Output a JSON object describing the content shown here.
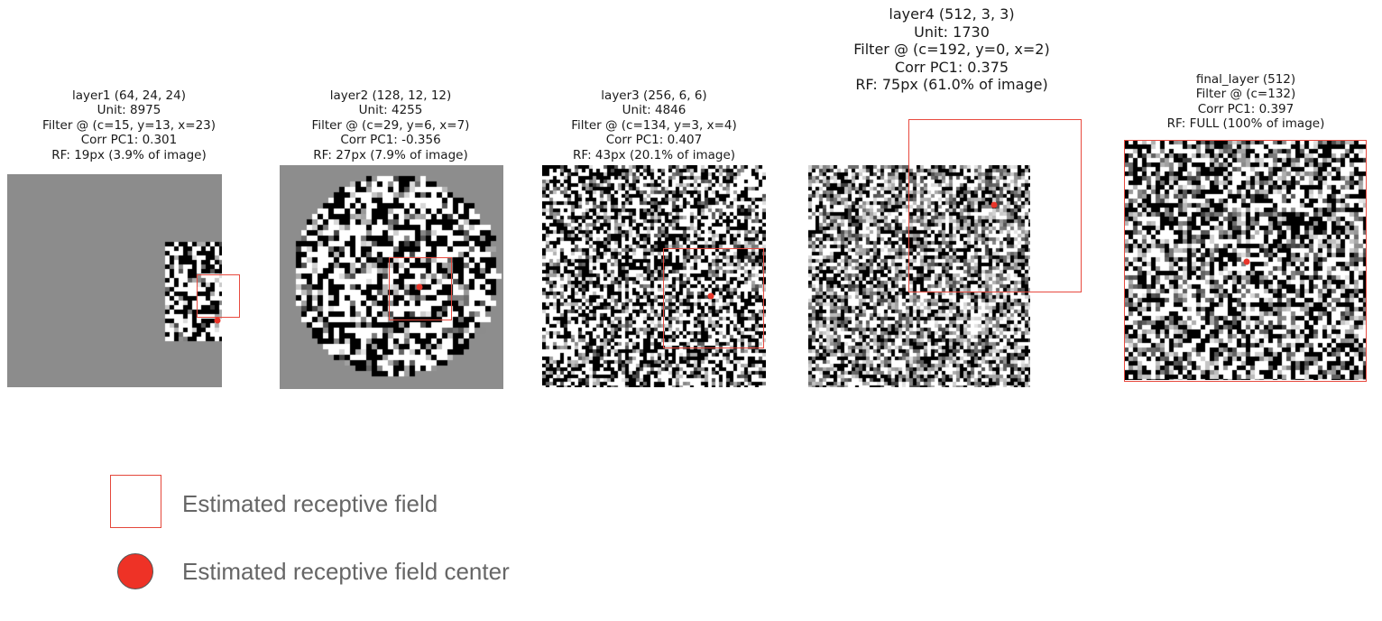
{
  "panels": [
    {
      "lines": [
        "layer1 (64, 24, 24)",
        "Unit: 8975",
        "Filter @ (c=15, y=13, x=23)",
        "Corr PC1: 0.301",
        "RF: 19px (3.9% of image)"
      ]
    },
    {
      "lines": [
        "layer2 (128, 12, 12)",
        "Unit: 4255",
        "Filter @ (c=29, y=6, x=7)",
        "Corr PC1: -0.356",
        "RF: 27px (7.9% of image)"
      ]
    },
    {
      "lines": [
        "layer3 (256, 6, 6)",
        "Unit: 4846",
        "Filter @ (c=134, y=3, x=4)",
        "Corr PC1: 0.407",
        "RF: 43px (20.1% of image)"
      ]
    },
    {
      "lines": [
        "layer4 (512, 3, 3)",
        "Unit: 1730",
        "Filter @ (c=192, y=0, x=2)",
        "Corr PC1: 0.375",
        "RF: 75px (61.0% of image)"
      ]
    },
    {
      "lines": [
        "final_layer (512)",
        "Filter @ (c=132)",
        "Corr PC1: 0.397",
        "RF: FULL (100% of image)"
      ]
    }
  ],
  "legend": {
    "rf_label": "Estimated receptive field",
    "center_label": "Estimated receptive field center"
  },
  "colors": {
    "rf_outline": "#e84a3f",
    "rf_center": "#e8352a",
    "background_gray": "#8a8a8a"
  }
}
